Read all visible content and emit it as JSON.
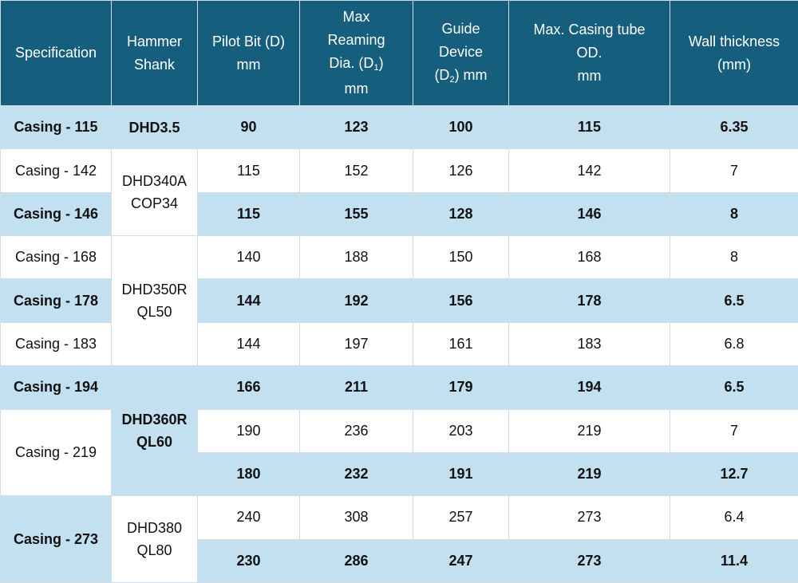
{
  "colors": {
    "header_bg": "#165e7d",
    "header_text": "#ffffff",
    "shade_bg": "#c3e0f1",
    "plain_bg": "#ffffff"
  },
  "headers": {
    "specification": "Specification",
    "hammer_shank": [
      "Hammer",
      "Shank"
    ],
    "pilot_bit": [
      "Pilot Bit (D)",
      "mm"
    ],
    "max_reaming": {
      "line1": "Max",
      "line2": "Reaming",
      "line3_pre": "Dia. (D",
      "line3_sub": "1",
      "line3_post": ")",
      "line4": "mm"
    },
    "guide_device": {
      "line1": "Guide",
      "line2": "Device",
      "line3_pre": "(D",
      "line3_sub": "2",
      "line3_post": ") mm"
    },
    "max_casing": [
      "Max. Casing tube",
      "OD.",
      "mm"
    ],
    "wall_thickness": [
      "Wall thickness",
      "(mm)"
    ]
  },
  "specs": [
    "Casing - 115",
    "Casing - 142",
    "Casing - 146",
    "Casing - 168",
    "Casing - 178",
    "Casing - 183",
    "Casing - 194",
    "Casing - 219",
    "Casing - 273"
  ],
  "shanks": [
    [
      "DHD3.5"
    ],
    [
      "DHD340A",
      "COP34"
    ],
    [
      "DHD350R",
      "QL50"
    ],
    [
      "DHD360R",
      "QL60"
    ],
    [
      "DHD380",
      "QL80"
    ]
  ],
  "rows": [
    [
      "90",
      "123",
      "100",
      "115",
      "6.35"
    ],
    [
      "115",
      "152",
      "126",
      "142",
      "7"
    ],
    [
      "115",
      "155",
      "128",
      "146",
      "8"
    ],
    [
      "140",
      "188",
      "150",
      "168",
      "8"
    ],
    [
      "144",
      "192",
      "156",
      "178",
      "6.5"
    ],
    [
      "144",
      "197",
      "161",
      "183",
      "6.8"
    ],
    [
      "166",
      "211",
      "179",
      "194",
      "6.5"
    ],
    [
      "190",
      "236",
      "203",
      "219",
      "7"
    ],
    [
      "180",
      "232",
      "191",
      "219",
      "12.7"
    ],
    [
      "240",
      "308",
      "257",
      "273",
      "6.4"
    ],
    [
      "230",
      "286",
      "247",
      "273",
      "11.4"
    ]
  ]
}
